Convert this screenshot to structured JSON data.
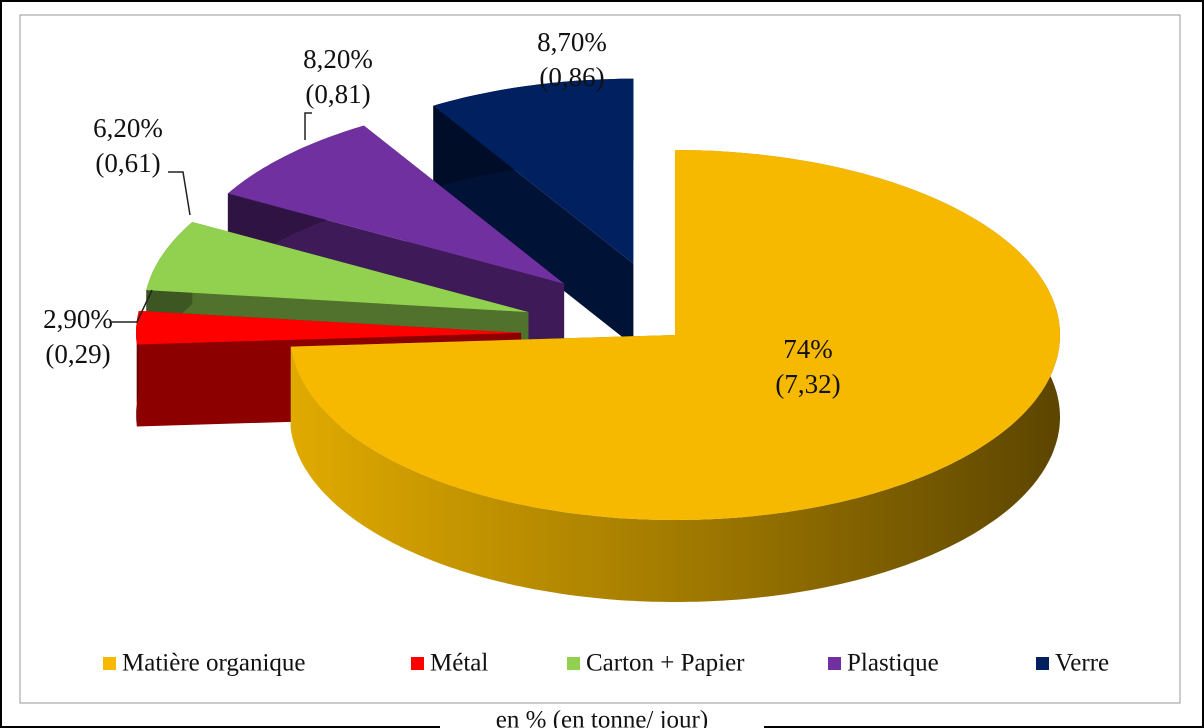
{
  "chart_data": {
    "type": "pie",
    "categories": [
      "Matière organique",
      "Métal",
      "Carton + Papier",
      "Plastique",
      "Verre"
    ],
    "values": [
      74,
      2.9,
      6.2,
      8.2,
      8.7
    ],
    "value_labels": [
      "74%",
      "2,90%",
      "6,20%",
      "8,20%",
      "8,70%"
    ],
    "tonnes": [
      7.32,
      0.29,
      0.61,
      0.81,
      0.86
    ],
    "tonnes_labels": [
      "(7,32)",
      "(0,29)",
      "(0,61)",
      "(0,81)",
      "(0,86)"
    ],
    "colors": [
      "#f6b900",
      "#ff0000",
      "#92d050",
      "#7030a0",
      "#002060"
    ],
    "exploded": [
      false,
      true,
      true,
      true,
      true
    ],
    "legend": "bottom",
    "caption": "en % (en tonne/ jour)"
  }
}
